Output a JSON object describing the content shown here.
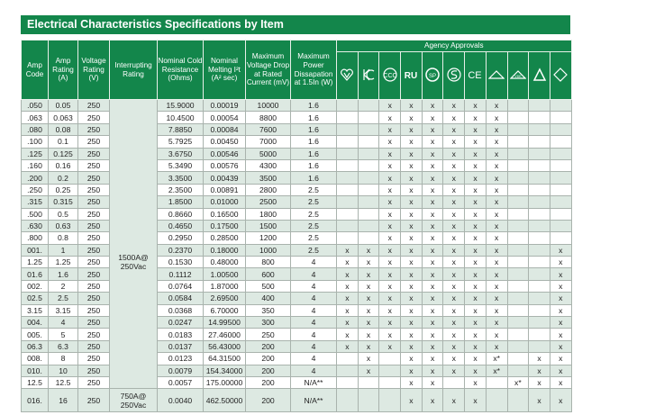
{
  "title": "Electrical Characteristics Specifications by Item",
  "headers": {
    "amp_code": "Amp Code",
    "amp_rating": "Amp Rating (A)",
    "voltage_rating": "Voltage Rating (V)",
    "interrupting_rating": "Interrupting Rating",
    "cold_resistance": "Nominal Cold Resistance (Ohms)",
    "melting": "Nominal Melting I²t (A² sec)",
    "voltage_drop": "Maximum Voltage Drop at Rated Current (mV)",
    "power": "Maximum Power Dissapation at 1.5In (W)",
    "agency": "Agency Approvals"
  },
  "agency_icons": [
    "pse-heart-icon",
    "kc-mark-icon",
    "ccc-mark-icon",
    "ur-mark-icon",
    "csa-mark-icon",
    "semko-s-icon",
    "ce-mark-icon",
    "bsi-triangle-icon",
    "vde-triangle-icon",
    "triangle-mark-icon",
    "diamond-mark-icon"
  ],
  "colors": {
    "header_green": "#13864b",
    "row_shade": "#dde9e2"
  },
  "interrupting": [
    {
      "text": "1500A@ 250Vac"
    },
    {
      "text": "750A@ 250Vac"
    }
  ],
  "rows": [
    {
      "code": ".050",
      "amp": "0.05",
      "volt": "250",
      "cold": "15.9000",
      "melt": "0.00019",
      "drop": "10000",
      "power": "1.6",
      "agency": [
        "",
        "",
        "x",
        "x",
        "x",
        "x",
        "x",
        "x",
        "",
        "",
        ""
      ]
    },
    {
      "code": ".063",
      "amp": "0.063",
      "volt": "250",
      "cold": "10.4500",
      "melt": "0.00054",
      "drop": "8800",
      "power": "1.6",
      "agency": [
        "",
        "",
        "x",
        "x",
        "x",
        "x",
        "x",
        "x",
        "",
        "",
        ""
      ]
    },
    {
      "code": ".080",
      "amp": "0.08",
      "volt": "250",
      "cold": "7.8850",
      "melt": "0.00084",
      "drop": "7600",
      "power": "1.6",
      "agency": [
        "",
        "",
        "x",
        "x",
        "x",
        "x",
        "x",
        "x",
        "",
        "",
        ""
      ]
    },
    {
      "code": ".100",
      "amp": "0.1",
      "volt": "250",
      "cold": "5.7925",
      "melt": "0.00450",
      "drop": "7000",
      "power": "1.6",
      "agency": [
        "",
        "",
        "x",
        "x",
        "x",
        "x",
        "x",
        "x",
        "",
        "",
        ""
      ]
    },
    {
      "code": ".125",
      "amp": "0.125",
      "volt": "250",
      "cold": "3.6750",
      "melt": "0.00546",
      "drop": "5000",
      "power": "1.6",
      "agency": [
        "",
        "",
        "x",
        "x",
        "x",
        "x",
        "x",
        "x",
        "",
        "",
        ""
      ]
    },
    {
      "code": ".160",
      "amp": "0.16",
      "volt": "250",
      "cold": "5.3490",
      "melt": "0.00576",
      "drop": "4300",
      "power": "1.6",
      "agency": [
        "",
        "",
        "x",
        "x",
        "x",
        "x",
        "x",
        "x",
        "",
        "",
        ""
      ]
    },
    {
      "code": ".200",
      "amp": "0.2",
      "volt": "250",
      "cold": "3.3500",
      "melt": "0.00439",
      "drop": "3500",
      "power": "1.6",
      "agency": [
        "",
        "",
        "x",
        "x",
        "x",
        "x",
        "x",
        "x",
        "",
        "",
        ""
      ]
    },
    {
      "code": ".250",
      "amp": "0.25",
      "volt": "250",
      "cold": "2.3500",
      "melt": "0.00891",
      "drop": "2800",
      "power": "2.5",
      "agency": [
        "",
        "",
        "x",
        "x",
        "x",
        "x",
        "x",
        "x",
        "",
        "",
        ""
      ]
    },
    {
      "code": ".315",
      "amp": "0.315",
      "volt": "250",
      "cold": "1.8500",
      "melt": "0.01000",
      "drop": "2500",
      "power": "2.5",
      "agency": [
        "",
        "",
        "x",
        "x",
        "x",
        "x",
        "x",
        "x",
        "",
        "",
        ""
      ]
    },
    {
      "code": ".500",
      "amp": "0.5",
      "volt": "250",
      "cold": "0.8660",
      "melt": "0.16500",
      "drop": "1800",
      "power": "2.5",
      "agency": [
        "",
        "",
        "x",
        "x",
        "x",
        "x",
        "x",
        "x",
        "",
        "",
        ""
      ]
    },
    {
      "code": ".630",
      "amp": "0.63",
      "volt": "250",
      "cold": "0.4650",
      "melt": "0.17500",
      "drop": "1500",
      "power": "2.5",
      "agency": [
        "",
        "",
        "x",
        "x",
        "x",
        "x",
        "x",
        "x",
        "",
        "",
        ""
      ]
    },
    {
      "code": ".800",
      "amp": "0.8",
      "volt": "250",
      "cold": "0.2950",
      "melt": "0.28500",
      "drop": "1200",
      "power": "2.5",
      "agency": [
        "",
        "",
        "x",
        "x",
        "x",
        "x",
        "x",
        "x",
        "",
        "",
        ""
      ]
    },
    {
      "code": "001.",
      "amp": "1",
      "volt": "250",
      "cold": "0.2370",
      "melt": "0.18000",
      "drop": "1000",
      "power": "2.5",
      "agency": [
        "x",
        "x",
        "x",
        "x",
        "x",
        "x",
        "x",
        "x",
        "",
        "",
        "x"
      ]
    },
    {
      "code": "1.25",
      "amp": "1.25",
      "volt": "250",
      "cold": "0.1530",
      "melt": "0.48000",
      "drop": "800",
      "power": "4",
      "agency": [
        "x",
        "x",
        "x",
        "x",
        "x",
        "x",
        "x",
        "x",
        "",
        "",
        "x"
      ]
    },
    {
      "code": "01.6",
      "amp": "1.6",
      "volt": "250",
      "cold": "0.1112",
      "melt": "1.00500",
      "drop": "600",
      "power": "4",
      "agency": [
        "x",
        "x",
        "x",
        "x",
        "x",
        "x",
        "x",
        "x",
        "",
        "",
        "x"
      ]
    },
    {
      "code": "002.",
      "amp": "2",
      "volt": "250",
      "cold": "0.0764",
      "melt": "1.87000",
      "drop": "500",
      "power": "4",
      "agency": [
        "x",
        "x",
        "x",
        "x",
        "x",
        "x",
        "x",
        "x",
        "",
        "",
        "x"
      ]
    },
    {
      "code": "02.5",
      "amp": "2.5",
      "volt": "250",
      "cold": "0.0584",
      "melt": "2.69500",
      "drop": "400",
      "power": "4",
      "agency": [
        "x",
        "x",
        "x",
        "x",
        "x",
        "x",
        "x",
        "x",
        "",
        "",
        "x"
      ]
    },
    {
      "code": "3.15",
      "amp": "3.15",
      "volt": "250",
      "cold": "0.0368",
      "melt": "6.70000",
      "drop": "350",
      "power": "4",
      "agency": [
        "x",
        "x",
        "x",
        "x",
        "x",
        "x",
        "x",
        "x",
        "",
        "",
        "x"
      ]
    },
    {
      "code": "004.",
      "amp": "4",
      "volt": "250",
      "cold": "0.0247",
      "melt": "14.99500",
      "drop": "300",
      "power": "4",
      "agency": [
        "x",
        "x",
        "x",
        "x",
        "x",
        "x",
        "x",
        "x",
        "",
        "",
        "x"
      ]
    },
    {
      "code": "005.",
      "amp": "5",
      "volt": "250",
      "cold": "0.0183",
      "melt": "27.46000",
      "drop": "250",
      "power": "4",
      "agency": [
        "x",
        "x",
        "x",
        "x",
        "x",
        "x",
        "x",
        "x",
        "",
        "",
        "x"
      ]
    },
    {
      "code": "06.3",
      "amp": "6.3",
      "volt": "250",
      "cold": "0.0137",
      "melt": "56.43000",
      "drop": "200",
      "power": "4",
      "agency": [
        "x",
        "x",
        "x",
        "x",
        "x",
        "x",
        "x",
        "x",
        "",
        "",
        "x"
      ]
    },
    {
      "code": "008.",
      "amp": "8",
      "volt": "250",
      "cold": "0.0123",
      "melt": "64.31500",
      "drop": "200",
      "power": "4",
      "agency": [
        "",
        "x",
        "",
        "x",
        "x",
        "x",
        "x",
        "x*",
        "",
        "x",
        "x"
      ]
    },
    {
      "code": "010.",
      "amp": "10",
      "volt": "250",
      "cold": "0.0079",
      "melt": "154.34000",
      "drop": "200",
      "power": "4",
      "agency": [
        "",
        "x",
        "",
        "x",
        "x",
        "x",
        "x",
        "x*",
        "",
        "x",
        "x"
      ]
    },
    {
      "code": "12.5",
      "amp": "12.5",
      "volt": "250",
      "cold": "0.0057",
      "melt": "175.00000",
      "drop": "200",
      "power": "N/A**",
      "agency": [
        "",
        "",
        "",
        "x",
        "x",
        "",
        "x",
        "",
        "x*",
        "x",
        "x"
      ]
    },
    {
      "code": "016.",
      "amp": "16",
      "volt": "250",
      "cold": "0.0040",
      "melt": "462.50000",
      "drop": "200",
      "power": "N/A**",
      "agency": [
        "",
        "",
        "",
        "x",
        "x",
        "x",
        "x",
        "",
        "",
        "x",
        "x"
      ]
    }
  ]
}
